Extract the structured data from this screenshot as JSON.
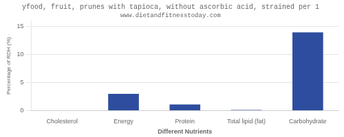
{
  "chart_data": {
    "type": "bar",
    "title": "yfood, fruit, prunes with tapioca, without ascorbic acid, strained per 1",
    "subtitle": "www.dietandfitnesstoday.com",
    "categories": [
      "Cholesterol",
      "Energy",
      "Protein",
      "Total lipid (fat)",
      "Carbohydrate"
    ],
    "values": [
      0,
      3.0,
      1.1,
      0.1,
      14.0
    ],
    "color": "#2e4d9e",
    "xlabel": "Different Nutrients",
    "ylabel": "Percentage of RDH (%)",
    "ylim": [
      0,
      16
    ],
    "yticks": [
      0,
      5,
      10,
      15
    ],
    "grid": true
  }
}
